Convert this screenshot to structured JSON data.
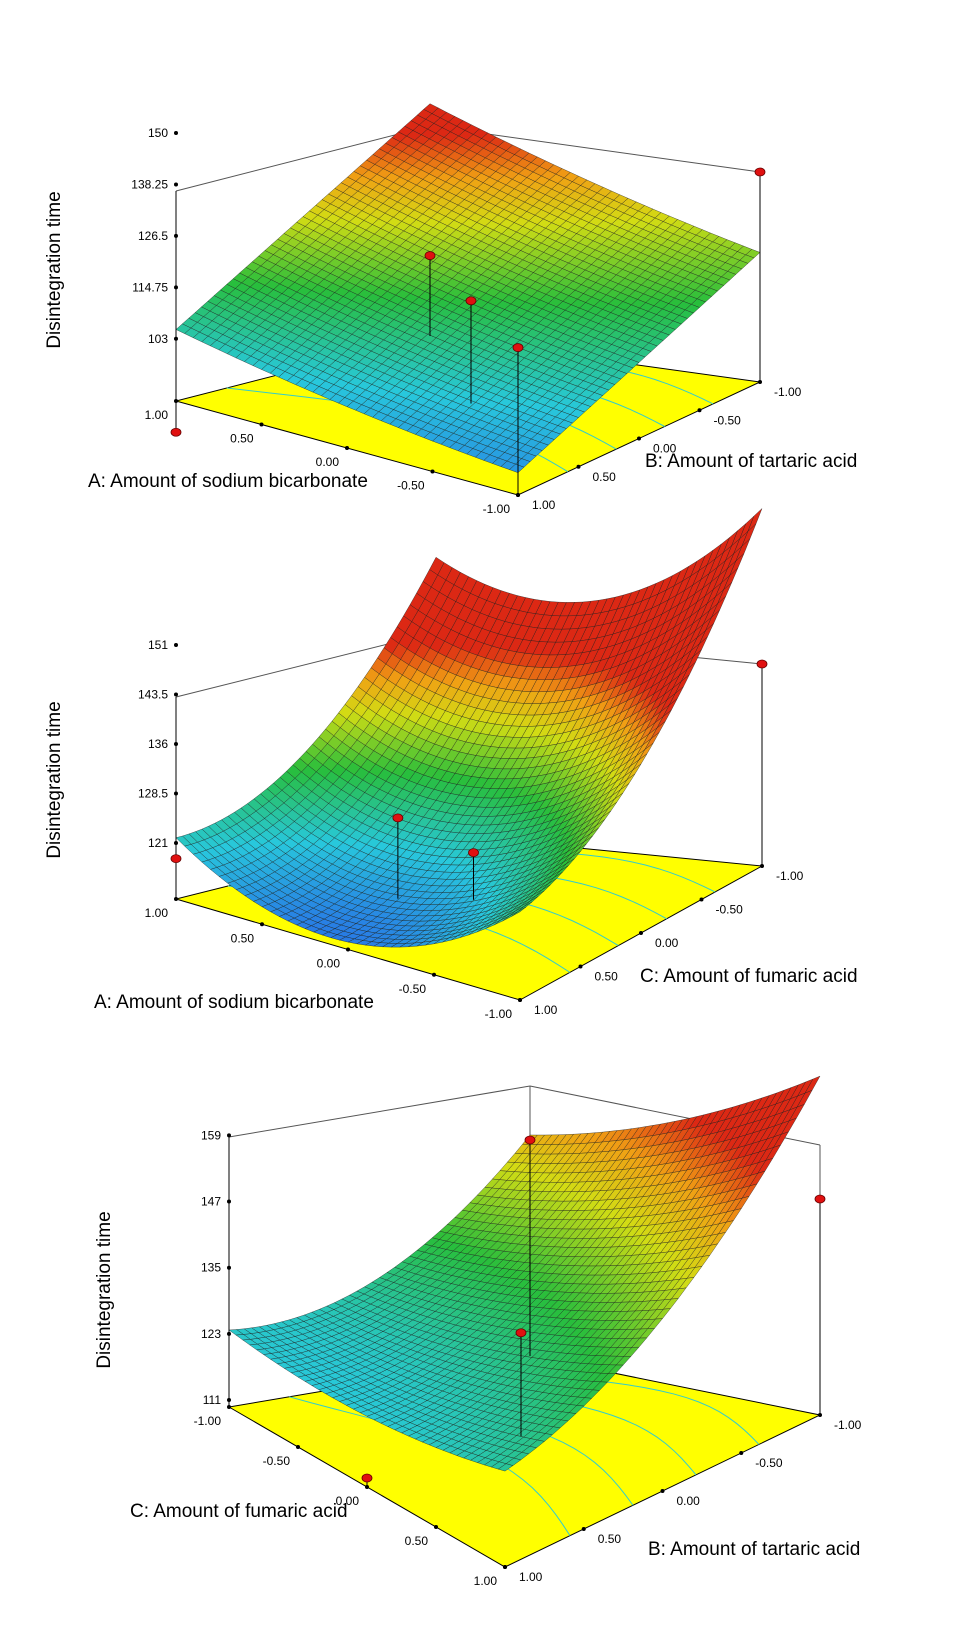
{
  "chart_data": [
    {
      "type": "surface3d",
      "zlabel": "Disintegration time",
      "xlabel": "A: Amount of sodium bicarbonate",
      "ylabel": "B: Amount of tartaric acid",
      "xticks": [
        "1.00",
        "0.50",
        "0.00",
        "-0.50",
        "-1.00"
      ],
      "yticks": [
        "1.00",
        "0.50",
        "0.00",
        "-0.50",
        "-1.00"
      ],
      "zticks": [
        "150",
        "138.25",
        "126.5",
        "114.75",
        "103"
      ],
      "zlim": [
        103,
        150
      ],
      "corner_values": {
        "A+B-": 119,
        "A+B+": 103,
        "A-B+": 120,
        "A-B-": 140
      },
      "center_value": 126,
      "design_points": [
        {
          "A": -1,
          "B": -1,
          "z": 150
        },
        {
          "A": -1,
          "B": 1,
          "z": 136
        },
        {
          "A": 1,
          "B": 1,
          "z": 96
        },
        {
          "A": 1,
          "B": -1,
          "z": 121
        },
        {
          "A": 0,
          "B": 0,
          "z": 126
        }
      ]
    },
    {
      "type": "surface3d",
      "zlabel": "Disintegration time",
      "xlabel": "A: Amount of sodium bicarbonate",
      "ylabel": "C: Amount of fumaric acid",
      "xticks": [
        "1.00",
        "0.50",
        "0.00",
        "-0.50",
        "-1.00"
      ],
      "yticks": [
        "1.00",
        "0.50",
        "0.00",
        "-0.50",
        "-1.00"
      ],
      "zticks": [
        "151",
        "143.5",
        "136",
        "128.5",
        "121"
      ],
      "zlim": [
        121,
        151
      ],
      "corner_values": {
        "A+C-": 130,
        "A+C+": 121,
        "A-C+": 144,
        "A-C-": 157
      },
      "center_value": 124,
      "design_points": [
        {
          "A": -1,
          "C": -1,
          "z": 151
        },
        {
          "A": 1,
          "C": 1,
          "z": 127
        },
        {
          "A": 0,
          "C": 0,
          "z": 128
        },
        {
          "A": 0.3,
          "C": 0.2,
          "z": 133
        }
      ]
    },
    {
      "type": "surface3d",
      "zlabel": "Disintegration time",
      "xlabel": "C: Amount of fumaric acid",
      "ylabel": "B: Amount of tartaric acid",
      "xticks": [
        "-1.00",
        "-0.50",
        "0.00",
        "0.50",
        "1.00"
      ],
      "yticks": [
        "1.00",
        "0.50",
        "0.00",
        "-0.50",
        "-1.00"
      ],
      "zticks": [
        "159",
        "147",
        "135",
        "123",
        "111"
      ],
      "zlim": [
        99,
        159
      ],
      "corner_values": {
        "C-B-": 139,
        "C-B+": 117,
        "C+B+": 137,
        "C+B-": 159
      },
      "center_value": 122,
      "design_points": [
        {
          "C": -1,
          "B": -1,
          "z": 147
        },
        {
          "C": 1,
          "B": -1,
          "z": 147
        },
        {
          "C": 0,
          "B": 0,
          "z": 122
        },
        {
          "C": 0,
          "B": 1,
          "z": 101
        }
      ]
    }
  ]
}
